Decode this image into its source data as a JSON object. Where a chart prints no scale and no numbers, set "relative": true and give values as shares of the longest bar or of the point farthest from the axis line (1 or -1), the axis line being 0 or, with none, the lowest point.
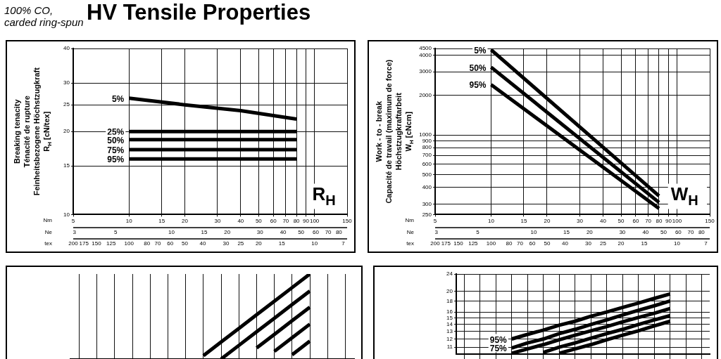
{
  "chart_data": [
    {
      "type": "line",
      "title": "HV Tensile Properties",
      "subtitle": "100% CO, carded ring-spun",
      "ylabel": "Breaking tenacity\nTénacité de rupture\nFeinheitsbezogene Höchstzugkraft\nR$_{H}$ [cN/tex]",
      "xlabel": "Nm",
      "log": "xy",
      "grid": true,
      "legend": false,
      "marker": "none",
      "line_style": "solid",
      "xlim": [
        5,
        150
      ],
      "xticks": [
        5,
        10,
        15,
        20,
        30,
        40,
        50,
        60,
        70,
        80,
        90,
        100,
        150
      ],
      "ylim": [
        10,
        40
      ],
      "yticks": [
        10,
        15,
        20,
        25,
        30,
        40
      ],
      "annotations": [
        "R$_{H}$",
        "Ne",
        "3",
        "5",
        "10",
        "15",
        "20",
        "30",
        "40",
        "50",
        "60",
        "70",
        "80",
        "tex",
        "200",
        "175",
        "150",
        "125",
        "100",
        "80",
        "70",
        "60",
        "50",
        "40",
        "30",
        "25",
        "20",
        "15",
        "10",
        "7"
      ],
      "series": [
        {
          "name": "5%",
          "color": "#000000",
          "x": [
            10,
            20,
            40,
            80
          ],
          "values": [
            26.4,
            25,
            23.8,
            22.2
          ]
        },
        {
          "name": "25%",
          "color": "#000000",
          "x": [
            10,
            80
          ],
          "values": [
            20,
            20
          ]
        },
        {
          "name": "50%",
          "color": "#000000",
          "x": [
            10,
            80
          ],
          "values": [
            18.7,
            18.7
          ]
        },
        {
          "name": "75%",
          "color": "#000000",
          "x": [
            10,
            80
          ],
          "values": [
            17.2,
            17.2
          ]
        },
        {
          "name": "95%",
          "color": "#000000",
          "x": [
            10,
            80
          ],
          "values": [
            15.9,
            15.9
          ]
        }
      ]
    },
    {
      "type": "line",
      "ylabel": "Work - to - break\nCapacité de travail (maximum de force)\nHöchstzugkraftarbeit\nW$_{H}$ [cNcm]",
      "xlabel": "Nm",
      "log": "xy",
      "grid": true,
      "legend": false,
      "marker": "none",
      "line_style": "solid",
      "xlim": [
        5,
        150
      ],
      "xticks": [
        5,
        10,
        15,
        20,
        30,
        40,
        50,
        60,
        70,
        80,
        90,
        100,
        150
      ],
      "ylim": [
        250,
        4500
      ],
      "yticks": [
        250,
        300,
        400,
        500,
        600,
        700,
        800,
        900,
        1000,
        2000,
        3000,
        4000,
        4500
      ],
      "annotations": [
        "W$_{H}$",
        "Ne",
        "3",
        "5",
        "10",
        "15",
        "20",
        "30",
        "40",
        "50",
        "60",
        "70",
        "80",
        "tex",
        "200",
        "175",
        "150",
        "125",
        "100",
        "80",
        "70",
        "60",
        "50",
        "40",
        "30",
        "25",
        "20",
        "15",
        "10",
        "7"
      ],
      "series": [
        {
          "name": "5%",
          "color": "#000000",
          "x": [
            10,
            80
          ],
          "values": [
            4400,
            346
          ]
        },
        {
          "name": "50%",
          "color": "#000000",
          "x": [
            10,
            80
          ],
          "values": [
            3250,
            309
          ]
        },
        {
          "name": "95%",
          "color": "#000000",
          "x": [
            10,
            80
          ],
          "values": [
            2400,
            278
          ]
        }
      ]
    },
    {
      "type": "line",
      "relative": true,
      "grid": "x",
      "legend": false,
      "marker": "none",
      "line_style": "solid",
      "categories": [
        null,
        null,
        null,
        null,
        null,
        null,
        null,
        null,
        null,
        null,
        null,
        null,
        null,
        null,
        null,
        null
      ],
      "series": [
        {
          "color": "#000000",
          "values": [
            null,
            null,
            null,
            null,
            null,
            null,
            null,
            0.04,
            0.2,
            0.36,
            0.52,
            0.68,
            0.84,
            1,
            null,
            null
          ]
        },
        {
          "color": "#000000",
          "values": [
            null,
            null,
            null,
            null,
            null,
            null,
            null,
            null,
            0,
            0.16,
            0.32,
            0.48,
            0.64,
            0.8,
            null,
            null
          ]
        },
        {
          "color": "#000000",
          "values": [
            null,
            null,
            null,
            null,
            null,
            null,
            null,
            null,
            null,
            null,
            0.13,
            0.29,
            0.45,
            0.61,
            null,
            null
          ]
        },
        {
          "color": "#000000",
          "values": [
            null,
            null,
            null,
            null,
            null,
            null,
            null,
            null,
            null,
            null,
            null,
            0.09,
            0.25,
            0.41,
            null,
            null
          ]
        },
        {
          "color": "#000000",
          "values": [
            null,
            null,
            null,
            null,
            null,
            null,
            null,
            null,
            null,
            null,
            null,
            null,
            0.05,
            0.21,
            null,
            null
          ]
        }
      ]
    },
    {
      "type": "line",
      "log": "y",
      "grid": true,
      "legend": false,
      "marker": "none",
      "line_style": "solid",
      "categories": [
        null,
        null,
        null,
        null,
        null,
        null,
        null,
        null,
        null,
        null,
        null,
        null,
        null,
        null,
        null,
        null
      ],
      "ylim": [
        10.2,
        24
      ],
      "yticks": [
        11,
        12,
        13,
        14,
        15,
        16,
        18,
        20,
        24
      ],
      "series": [
        {
          "name": "95%",
          "color": "#000000",
          "values": [
            null,
            null,
            null,
            12.0,
            12.6,
            13.2,
            13.9,
            14.5,
            15.3,
            16.0,
            16.8,
            17.6,
            18.5,
            19.4,
            null,
            null
          ]
        },
        {
          "name": "75%",
          "color": "#000000",
          "values": [
            null,
            null,
            null,
            10.9,
            11.5,
            12.0,
            12.7,
            13.3,
            14.0,
            14.7,
            15.5,
            16.3,
            17.1,
            18.0,
            null,
            null
          ]
        },
        {
          "color": "#000000",
          "values": [
            null,
            null,
            null,
            10.3,
            10.8,
            11.3,
            11.9,
            12.5,
            13.1,
            13.7,
            14.4,
            15.1,
            15.8,
            16.6,
            null,
            null
          ]
        },
        {
          "color": "#000000",
          "values": [
            null,
            null,
            null,
            null,
            null,
            10.4,
            11.0,
            11.5,
            12.1,
            12.7,
            13.3,
            14.0,
            14.7,
            15.4,
            null,
            null
          ]
        },
        {
          "color": "#000000",
          "values": [
            null,
            null,
            null,
            null,
            null,
            null,
            10.3,
            10.8,
            11.3,
            11.9,
            12.5,
            13.1,
            13.8,
            14.5,
            null,
            null
          ]
        }
      ]
    }
  ]
}
